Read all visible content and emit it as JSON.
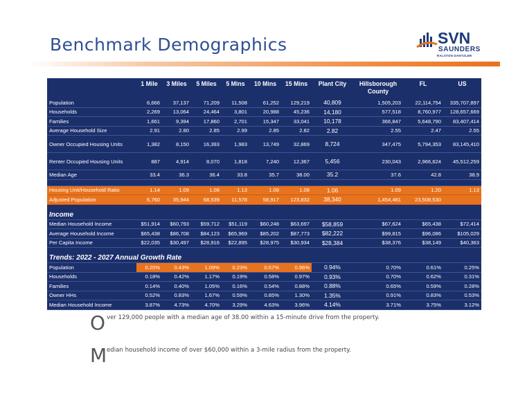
{
  "page_title": "Benchmark Demographics",
  "logo": {
    "brand": "SVN",
    "name": "SAUNDERS",
    "sub": "RALSTON DANTZLER"
  },
  "colors": {
    "navy": "#1b2f6b",
    "orange": "#e8731e",
    "title_blue": "#2f4f93"
  },
  "table": {
    "columns": [
      "1 Mile",
      "3 Miles",
      "5 Miles",
      "5 Mins",
      "10 Mins",
      "15 Mins",
      "Plant City",
      "Hillsborough County",
      "FL",
      "US"
    ],
    "demographics": [
      {
        "label": "Population",
        "values": [
          "6,666",
          "37,137",
          "71,209",
          "11,508",
          "61,252",
          "129,219",
          "40,809",
          "1,505,203",
          "22,114,754",
          "335,707,897"
        ]
      },
      {
        "label": "Households",
        "values": [
          "2,269",
          "13,064",
          "24,464",
          "3,801",
          "20,988",
          "45,236",
          "14,180",
          "577,518",
          "8,760,977",
          "128,657,669"
        ]
      },
      {
        "label": "Families",
        "values": [
          "1,661",
          "9,394",
          "17,860",
          "2,701",
          "15,347",
          "33,041",
          "10,178",
          "366,847",
          "5,648,790",
          "83,407,414"
        ]
      },
      {
        "label": "Average Household Size",
        "values": [
          "2.91",
          "2.80",
          "2.85",
          "2.99",
          "2.85",
          "2.82",
          "2.82",
          "2.55",
          "2.47",
          "2.55"
        ]
      },
      {
        "label": "Owner Occupied Housing Units",
        "values": [
          "1,382",
          "8,150",
          "16,393",
          "1,983",
          "13,749",
          "32,869",
          "8,724",
          "347,475",
          "5,794,353",
          "83,145,410"
        ],
        "tall": true
      },
      {
        "label": "Renter Occupied Housing Units",
        "values": [
          "887",
          "4,914",
          "8,070",
          "1,818",
          "7,240",
          "12,367",
          "5,456",
          "230,043",
          "2,966,624",
          "45,512,259"
        ],
        "tall": true
      },
      {
        "label": "Median Age",
        "values": [
          "33.4",
          "36.3",
          "36.4",
          "33.8",
          "35.7",
          "38.00",
          "35.2",
          "37.6",
          "42.8",
          "38.9"
        ]
      }
    ],
    "housing": [
      {
        "label": "Housing Unit/Household Ratio",
        "values": [
          "1.14",
          "1.09",
          "1.08",
          "1.13",
          "1.08",
          "1.08",
          "1.06",
          "1.09",
          "1.20",
          "1.13"
        ]
      },
      {
        "label": "Adjusted Population",
        "values": [
          "6,760",
          "35,944",
          "68,539",
          "11,578",
          "58,917",
          "123,832",
          "38,340",
          "1,454,481",
          "23,508,530",
          ""
        ]
      }
    ],
    "income_title": "Income",
    "income": [
      {
        "label": "Median Household Income",
        "values": [
          "$51,914",
          "$60,793",
          "$59,712",
          "$51,119",
          "$60,248",
          "$63,697",
          "$58,859",
          "$67,624",
          "$65,438",
          "$72,414"
        ]
      },
      {
        "label": "Average Household Income",
        "values": [
          "$65,438",
          "$86,708",
          "$84,123",
          "$65,969",
          "$85,202",
          "$87,773",
          "$82,222",
          "$99,815",
          "$96,086",
          "$105,029"
        ]
      },
      {
        "label": "Per Capita Income",
        "values": [
          "$22,035",
          "$30,497",
          "$28,916",
          "$22,895",
          "$28,975",
          "$30,934",
          "$28,384",
          "$38,376",
          "$38,149",
          "$40,363"
        ]
      }
    ],
    "trends_title": "Trends: 2022 - 2027 Annual Growth Rate",
    "trends": [
      {
        "label": "Population",
        "values": [
          "0.20%",
          "0.43%",
          "1.09%",
          "0.23%",
          "0.57%",
          "0.96%",
          "0.94%",
          "0.70%",
          "0.61%",
          "0.25%"
        ],
        "highlight": true
      },
      {
        "label": "Households",
        "values": [
          "0.18%",
          "0.42%",
          "1.17%",
          "0.19%",
          "0.58%",
          "0.97%",
          "0.93%",
          "0.70%",
          "0.62%",
          "0.31%"
        ]
      },
      {
        "label": "Families",
        "values": [
          "0.14%",
          "0.40%",
          "1.05%",
          "0.16%",
          "0.54%",
          "0.88%",
          "0.88%",
          "0.65%",
          "0.59%",
          "0.28%"
        ]
      },
      {
        "label": "Owner HHs",
        "values": [
          "0.52%",
          "0.83%",
          "1.67%",
          "0.59%",
          "0.85%",
          "1.30%",
          "1.35%",
          "0.91%",
          "0.83%",
          "0.53%"
        ]
      },
      {
        "label": "Median Household Income",
        "values": [
          "3.87%",
          "4.73%",
          "4.70%",
          "3.29%",
          "4.63%",
          "3.96%",
          "4.14%",
          "3.71%",
          "3.75%",
          "3.12%"
        ]
      }
    ]
  },
  "bullets": [
    {
      "cap": "O",
      "text": "ver 129,000 people with a median age of 38.00 within a 15-minute drive from the property."
    },
    {
      "cap": "M",
      "text": "edian household income of over $60,000 within a 3-mile radius from the property."
    }
  ]
}
